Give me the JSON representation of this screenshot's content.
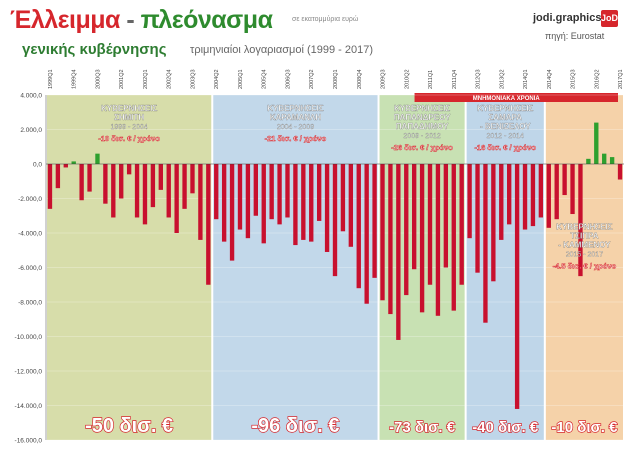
{
  "header": {
    "title_red": "Έλλειμμα",
    "title_dash": "-",
    "title_green": "πλεόνασμα",
    "subtitle": "γενικής κυβέρνησης",
    "units": "σε εκατομμύρια ευρώ",
    "period": "τριμηνιαίοι λογαριασμοί (1999 - 2017)",
    "brand": "jodi.graphics",
    "brand_badge": "JoDi",
    "source": "πηγή: Eurostat"
  },
  "colors": {
    "deficit": "#c8102e",
    "surplus": "#2ea02e",
    "accent": "#d6262c"
  },
  "memorandum_label": "ΜΝΗΜΟΝΙΑΚΑ ΧΡΟΝΙΑ",
  "governments": [
    {
      "name": "ΚΥΒΕΡΝΗΣΕΙΣ ΣΗΜΙΤΗ",
      "years": "1999 - 2004",
      "rate": "-10 δισ. € / χρόνο",
      "total": "-50 δισ. €",
      "start": 0,
      "end": 21,
      "color": "#c9d28e"
    },
    {
      "name": "ΚΥΒΕΡΝΗΣΕΙΣ ΚΑΡΑΜΑΝΛΗ",
      "years": "2004 - 2009",
      "rate": "-21 δισ. € / χρόνο",
      "total": "-96 δισ. €",
      "start": 21,
      "end": 42,
      "color": "#aecbe3"
    },
    {
      "name": "ΚΥΒΕΡΝΗΣΕΙΣ ΠΑΠΑΝΔΡΕΟΥ ΠΑΠΑΔΗΜΟΥ",
      "years": "2009 - 2012",
      "rate": "-26 δισ. € / χρόνο",
      "total": "-73 δισ. €",
      "start": 42,
      "end": 53,
      "color": "#b5d79a"
    },
    {
      "name": "ΚΥΒΕΡΝΗΣΕΙΣ ΣΑΜΑΡΑ - ΒΕΝΙΖΕΛΟΥ",
      "years": "2012 - 2014",
      "rate": "-16 δισ. € / χρόνο",
      "total": "-40 δισ. €",
      "start": 53,
      "end": 63,
      "color": "#a9c8e2"
    },
    {
      "name": "ΚΥΒΕΡΝΗΣΕΙΣ ΤΣΙΠΡΑ - ΚΑΜΜΕΝΟΥ",
      "years": "2015 - 2017",
      "rate": "-4.5 δισ. € / χρόνο",
      "total": "-10 δισ. €",
      "start": 63,
      "end": 73,
      "color": "#f2c38c"
    }
  ],
  "chart_data": {
    "type": "bar",
    "ylabel": "",
    "xlabel": "",
    "ylim": [
      -16000,
      4000
    ],
    "yticks": [
      "4.000,0",
      "2.000,0",
      "0,0",
      "-2.000,0",
      "-4.000,0",
      "-6.000,0",
      "-8.000,0",
      "-10.000,0",
      "-12.000,0",
      "-14.000,0",
      "-16.000,0"
    ],
    "categories": [
      "1999Q1",
      "1999Q2",
      "1999Q3",
      "1999Q4",
      "2000Q1",
      "2000Q2",
      "2000Q3",
      "2000Q4",
      "2001Q1",
      "2001Q2",
      "2001Q3",
      "2001Q4",
      "2002Q1",
      "2002Q2",
      "2002Q3",
      "2002Q4",
      "2003Q1",
      "2003Q2",
      "2003Q3",
      "2003Q4",
      "2004Q1",
      "2004Q2",
      "2004Q3",
      "2004Q4",
      "2005Q1",
      "2005Q2",
      "2005Q3",
      "2005Q4",
      "2006Q1",
      "2006Q2",
      "2006Q3",
      "2006Q4",
      "2007Q1",
      "2007Q2",
      "2007Q3",
      "2007Q4",
      "2008Q1",
      "2008Q2",
      "2008Q3",
      "2008Q4",
      "2009Q1",
      "2009Q2",
      "2009Q3",
      "2009Q4",
      "2010Q1",
      "2010Q2",
      "2010Q3",
      "2010Q4",
      "2011Q1",
      "2011Q2",
      "2011Q3",
      "2011Q4",
      "2012Q1",
      "2012Q2",
      "2012Q3",
      "2012Q4",
      "2013Q1",
      "2013Q2",
      "2013Q3",
      "2013Q4",
      "2014Q1",
      "2014Q2",
      "2014Q3",
      "2014Q4",
      "2015Q1",
      "2015Q2",
      "2015Q3",
      "2015Q4",
      "2016Q1",
      "2016Q2",
      "2016Q3",
      "2016Q4",
      "2017Q1"
    ],
    "tick_labels": [
      "1999Q1",
      "1999Q4",
      "2000Q3",
      "2001Q2",
      "2002Q1",
      "2002Q4",
      "2003Q3",
      "2004Q2",
      "2005Q1",
      "2005Q4",
      "2006Q3",
      "2007Q2",
      "2008Q1",
      "2008Q4",
      "2009Q3",
      "2010Q2",
      "2011Q1",
      "2011Q4",
      "2012Q3",
      "2013Q2",
      "2014Q1",
      "2014Q4",
      "2015Q3",
      "2016Q2",
      "2017Q1"
    ],
    "values": [
      -2600,
      -1400,
      -200,
      150,
      -2100,
      -1600,
      600,
      -2300,
      -3100,
      -2000,
      -600,
      -3100,
      -3500,
      -2500,
      -1500,
      -3100,
      -4000,
      -2600,
      -1700,
      -4400,
      -7000,
      -3200,
      -4500,
      -5600,
      -3800,
      -4300,
      -3000,
      -4600,
      -3200,
      -3500,
      -3100,
      -4700,
      -4400,
      -4500,
      -3300,
      -5100,
      -6500,
      -3900,
      -4800,
      -7200,
      -8100,
      -6600,
      -7900,
      -8700,
      -10200,
      -7600,
      -6100,
      -8600,
      -7000,
      -8800,
      -6000,
      -8500,
      -7000,
      -4300,
      -6300,
      -9200,
      -6800,
      -4400,
      -3500,
      -14200,
      -3800,
      -3600,
      -3100,
      -3700,
      -3200,
      -1800,
      -2900,
      -6500,
      300,
      2400,
      600,
      400,
      -900
    ]
  }
}
